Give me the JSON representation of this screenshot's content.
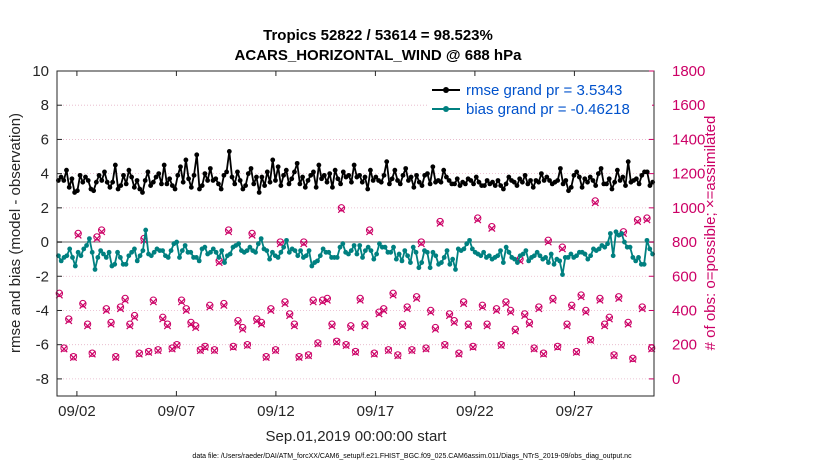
{
  "colors": {
    "rmse": "#000000",
    "bias": "#008080",
    "obs": "#cc0066",
    "zero_line": "#b3b3b3",
    "legend_text": "#0052cc",
    "grid": "#e6b3c7"
  },
  "chart_data": {
    "type": "line",
    "title": "Tropics 52822 / 53614 = 98.523%",
    "subtitle": "ACARS_HORIZONTAL_WIND @ 688 hPa",
    "xlabel": "Sep.01,2019 00:00:00 start",
    "ylabel_left": "rmse and bias (model - observation)",
    "ylabel_right": "# of obs: o=possible; ×=assimilated",
    "footer": "data file: /Users/raeder/DAI/ATM_forcXX/CAM6_setup/f.e21.FHIST_BGC.f09_025.CAM6assim.011/Diags_NTrS_2019-09/obs_diag_output.nc",
    "x_tick_labels": [
      "09/02",
      "09/07",
      "09/12",
      "09/17",
      "09/22",
      "09/27"
    ],
    "x_tick_days": [
      2,
      7,
      12,
      17,
      22,
      27
    ],
    "xlim_days": [
      1.0,
      31.0
    ],
    "ylim_left": [
      -9,
      10
    ],
    "y_ticks_left": [
      "10",
      "8",
      "6",
      "4",
      "2",
      "0",
      "-2",
      "-4",
      "-6",
      "-8"
    ],
    "ylim_right": [
      -100,
      1800
    ],
    "y_ticks_right": [
      "1800",
      "1600",
      "1400",
      "1200",
      "1000",
      "800",
      "600",
      "400",
      "200",
      "0"
    ],
    "legend": {
      "position": "top-right",
      "rmse_label": "rmse grand pr = 3.5343",
      "bias_label": "bias grand pr = -0.46218"
    },
    "series": [
      {
        "name": "rmse",
        "axis": "left",
        "color": "#000000",
        "marker": "circle",
        "values": [
          3.6,
          3.8,
          3.6,
          4.2,
          3.2,
          3.7,
          2.9,
          3.0,
          3.9,
          3.5,
          3.8,
          3.6,
          3.1,
          3.0,
          3.5,
          3.9,
          3.6,
          4.1,
          3.5,
          3.2,
          3.5,
          4.5,
          3.1,
          3.3,
          3.9,
          3.4,
          4.2,
          3.8,
          3.2,
          3.6,
          3.1,
          2.9,
          3.6,
          4.1,
          3.3,
          3.5,
          3.8,
          4.0,
          3.4,
          4.5,
          3.4,
          3.7,
          3.3,
          3.1,
          3.9,
          4.4,
          3.5,
          4.8,
          3.7,
          3.2,
          3.9,
          5.1,
          3.1,
          3.3,
          4.0,
          3.6,
          4.3,
          3.6,
          3.7,
          3.4,
          3.1,
          3.9,
          4.1,
          5.3,
          3.8,
          3.4,
          4.1,
          3.6,
          3.1,
          3.3,
          4.0,
          4.3,
          3.4,
          3.8,
          2.9,
          3.8,
          3.3,
          4.1,
          3.5,
          4.8,
          3.6,
          4.4,
          3.3,
          3.9,
          4.2,
          3.4,
          3.7,
          4.1,
          4.6,
          3.4,
          3.8,
          3.2,
          3.6,
          3.9,
          4.1,
          3.2,
          4.5,
          3.7,
          3.9,
          3.5,
          4.0,
          3.2,
          4.2,
          3.7,
          3.4,
          4.1,
          3.8,
          3.9,
          3.5,
          4.5,
          3.8,
          3.9,
          3.5,
          3.8,
          3.1,
          4.2,
          3.6,
          3.8,
          3.6,
          3.5,
          3.9,
          4.7,
          3.4,
          3.7,
          4.2,
          3.6,
          3.4,
          3.9,
          4.3,
          3.6,
          3.8,
          3.2,
          3.9,
          3.5,
          3.3,
          3.9,
          4.0,
          3.4,
          4.4,
          3.5,
          3.6,
          3.5,
          4.2,
          3.8,
          3.6,
          3.4,
          3.4,
          3.7,
          3.3,
          3.5,
          3.4,
          3.7,
          3.6,
          3.4,
          3.8,
          3.5,
          3.3,
          3.3,
          3.6,
          3.4,
          3.5,
          3.3,
          3.6,
          3.3,
          3.1,
          3.4,
          3.8,
          3.6,
          3.5,
          3.3,
          3.7,
          3.5,
          3.9,
          3.4,
          3.6,
          3.2,
          3.6,
          3.5,
          4.0,
          3.6,
          3.8,
          3.6,
          3.4,
          3.5,
          3.6,
          4.3,
          3.4,
          3.6,
          3.0,
          3.2,
          3.9,
          4.1,
          3.8,
          3.2,
          3.7,
          3.5,
          3.8,
          3.6,
          3.3,
          4.0,
          4.3,
          3.4,
          3.4,
          3.7,
          3.1,
          3.5,
          4.2,
          3.6,
          3.8,
          3.3,
          4.7,
          3.5,
          3.6,
          3.7,
          3.4,
          3.9,
          4.1,
          4.1,
          3.3,
          3.5
        ]
      },
      {
        "name": "bias",
        "axis": "left",
        "color": "#008080",
        "marker": "circle",
        "values": [
          -0.8,
          -1.1,
          -0.9,
          -0.8,
          -0.4,
          -0.9,
          -1.4,
          -0.6,
          -0.8,
          -0.4,
          -0.2,
          0.2,
          -0.6,
          -1.6,
          -0.9,
          -0.5,
          -0.7,
          -0.9,
          -0.6,
          -1.4,
          -1.3,
          -0.6,
          -0.9,
          -1.3,
          -1.3,
          -0.8,
          -0.6,
          -0.4,
          -1.1,
          -0.8,
          -0.5,
          0.7,
          -0.7,
          -0.8,
          -0.6,
          -0.4,
          -0.5,
          -0.5,
          -0.8,
          -0.9,
          -0.5,
          -0.1,
          0.0,
          -0.9,
          -0.5,
          -0.2,
          -0.6,
          -0.6,
          -0.9,
          -0.9,
          -1.1,
          -0.4,
          -0.3,
          -0.7,
          -0.6,
          -0.4,
          -0.6,
          -0.9,
          -0.5,
          -1.2,
          -0.8,
          -0.7,
          -0.3,
          -0.2,
          -0.1,
          -0.5,
          -0.6,
          -0.5,
          -0.3,
          -0.5,
          -0.6,
          -0.1,
          0.2,
          -0.4,
          -0.5,
          -1.0,
          -0.6,
          -0.8,
          -0.9,
          -0.6,
          -0.3,
          0.1,
          -0.6,
          -0.4,
          -0.5,
          -0.8,
          -0.5,
          -0.9,
          -0.8,
          -0.5,
          -1.4,
          -1.2,
          -1.1,
          -0.8,
          -0.4,
          -0.6,
          -0.6,
          -0.9,
          -0.9,
          -0.9,
          -0.3,
          -0.1,
          -0.6,
          -0.7,
          -0.5,
          -0.2,
          -0.7,
          -0.2,
          -0.9,
          -0.5,
          -0.3,
          -0.5,
          -1.0,
          -0.7,
          -0.1,
          -0.3,
          -0.3,
          -0.6,
          -0.6,
          -0.3,
          -1.0,
          -0.7,
          -1.1,
          -0.5,
          -0.8,
          -1.2,
          -0.3,
          -0.6,
          -1.5,
          -1.2,
          -0.5,
          -0.6,
          -1.5,
          -0.6,
          -0.8,
          -1.3,
          -1.2,
          -0.9,
          -0.5,
          -1.3,
          -1.0,
          -1.6,
          -0.4,
          -0.5,
          -0.4,
          -0.1,
          0.1,
          -0.4,
          -0.6,
          -0.7,
          -0.8,
          -0.6,
          -0.9,
          -0.8,
          -1.0,
          -0.9,
          -0.8,
          -0.5,
          -1.2,
          -0.3,
          -0.6,
          -0.9,
          -1.0,
          -1.2,
          -0.8,
          -0.7,
          -0.5,
          -1.1,
          -0.9,
          -0.8,
          -0.6,
          -0.8,
          -1.0,
          -0.9,
          -1.2,
          -0.7,
          -1.3,
          -1.0,
          -1.1,
          -1.9,
          -0.9,
          -0.9,
          -0.7,
          -0.9,
          -0.8,
          -0.6,
          -0.6,
          -0.7,
          -1.0,
          -0.8,
          -0.4,
          -0.5,
          -0.4,
          -0.2,
          -0.3,
          -0.1,
          0.5,
          -0.8,
          0.6,
          0.4,
          0.5,
          0.0,
          -0.3,
          -0.3,
          -0.9,
          -1.1,
          -0.9,
          -1.3,
          -1.3,
          0.1,
          -0.4,
          -0.7
        ]
      },
      {
        "name": "obs_possible",
        "axis": "right",
        "color": "#cc0066",
        "marker": "circle-open",
        "values": [
          500,
          180,
          350,
          130,
          850,
          440,
          320,
          150,
          830,
          870,
          410,
          330,
          130,
          420,
          470,
          320,
          370,
          150,
          820,
          160,
          460,
          170,
          360,
          320,
          180,
          200,
          460,
          410,
          330,
          310,
          170,
          190,
          430,
          170,
          690,
          440,
          870,
          190,
          340,
          300,
          200,
          850,
          350,
          330,
          130,
          410,
          170,
          800,
          450,
          380,
          320,
          130,
          800,
          140,
          460,
          210,
          460,
          470,
          320,
          220,
          1000,
          200,
          310,
          160,
          470,
          320,
          870,
          150,
          390,
          410,
          170,
          500,
          140,
          320,
          420,
          170,
          480,
          800,
          180,
          400,
          300,
          920,
          200,
          380,
          340,
          150,
          450,
          320,
          190,
          940,
          430,
          320,
          890,
          410,
          200,
          450,
          400,
          290,
          700,
          380,
          330,
          180,
          420,
          150,
          810,
          470,
          190,
          770,
          320,
          430,
          160,
          490,
          400,
          230,
          1040,
          470,
          320,
          360,
          140,
          480,
          860,
          330,
          120,
          930,
          420,
          940,
          180
        ]
      },
      {
        "name": "obs_assimilated",
        "axis": "right",
        "color": "#cc0066",
        "marker": "x",
        "values": [
          490,
          175,
          340,
          125,
          840,
          430,
          310,
          145,
          820,
          860,
          400,
          320,
          125,
          410,
          460,
          310,
          360,
          145,
          810,
          155,
          450,
          165,
          350,
          310,
          175,
          195,
          450,
          400,
          320,
          300,
          165,
          185,
          420,
          165,
          680,
          430,
          860,
          185,
          330,
          290,
          195,
          840,
          340,
          320,
          125,
          400,
          165,
          790,
          440,
          370,
          310,
          125,
          790,
          135,
          450,
          205,
          450,
          460,
          310,
          215,
          990,
          195,
          300,
          155,
          460,
          310,
          860,
          145,
          380,
          400,
          165,
          490,
          135,
          310,
          410,
          165,
          470,
          790,
          175,
          390,
          290,
          910,
          195,
          370,
          330,
          145,
          440,
          310,
          185,
          930,
          420,
          310,
          880,
          400,
          195,
          440,
          390,
          280,
          690,
          370,
          320,
          175,
          410,
          145,
          800,
          460,
          185,
          760,
          310,
          420,
          155,
          480,
          390,
          225,
          1030,
          460,
          310,
          350,
          135,
          470,
          850,
          320,
          115,
          920,
          410,
          930,
          175
        ]
      }
    ]
  }
}
